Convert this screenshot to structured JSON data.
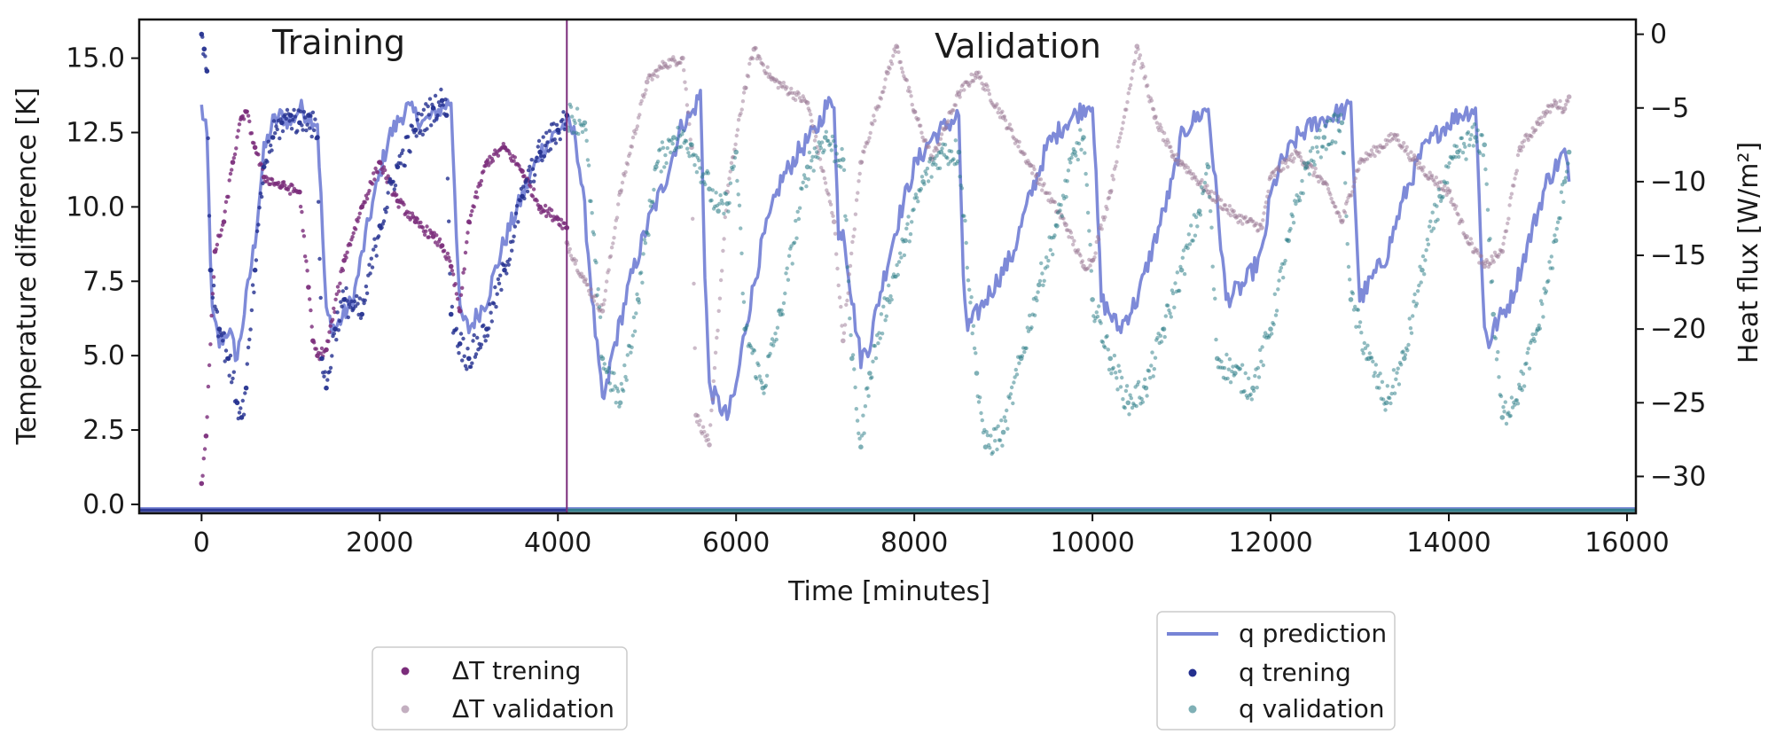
{
  "chart_data": {
    "type": "scatter",
    "xlabel": "Time [minutes]",
    "ylabel_left": "Temperature difference [K]",
    "ylabel_right": "Heat flux [W/m²]",
    "xlim": [
      -700,
      16100
    ],
    "ylim_left": [
      -0.3,
      16.3
    ],
    "ylim_right": [
      -32.5,
      1.0
    ],
    "x_ticks": [
      0,
      2000,
      4000,
      6000,
      8000,
      10000,
      12000,
      14000,
      16000
    ],
    "y_left_ticks": [
      0.0,
      2.5,
      5.0,
      7.5,
      10.0,
      12.5,
      15.0
    ],
    "y_right_ticks": [
      0,
      -5,
      -10,
      -15,
      -20,
      -25,
      -30
    ],
    "x_tick_labels": [
      "0",
      "2000",
      "4000",
      "6000",
      "8000",
      "10000",
      "12000",
      "14000",
      "16000"
    ],
    "y_left_tick_labels": [
      "0.0",
      "2.5",
      "5.0",
      "7.5",
      "10.0",
      "12.5",
      "15.0"
    ],
    "y_right_tick_labels": [
      "0",
      "−5",
      "−10",
      "−15",
      "−20",
      "−25",
      "−30"
    ],
    "split_x": 4100,
    "regions": {
      "training": "Training",
      "validation": "Validation"
    },
    "series": [
      {
        "name": "ΔT trening",
        "kind": "scatter",
        "axis": "left",
        "color": "#7b2d7b",
        "x": [
          0,
          50,
          150,
          250,
          350,
          450,
          500,
          600,
          700,
          900,
          1100,
          1200,
          1250,
          1300,
          1400,
          1600,
          1800,
          2000,
          2200,
          2400,
          2600,
          2700,
          2800,
          2900,
          3000,
          3200,
          3400,
          3600,
          3800,
          4000,
          4100
        ],
        "y": [
          0.7,
          2.3,
          8.5,
          9.5,
          11.5,
          13.0,
          13.2,
          12.0,
          11.0,
          10.7,
          10.5,
          7.3,
          5.5,
          5.0,
          5.2,
          8.2,
          10.0,
          11.5,
          10.2,
          9.5,
          9.0,
          8.7,
          8.0,
          6.5,
          9.5,
          11.5,
          12.0,
          11.2,
          10.0,
          9.6,
          9.3
        ]
      },
      {
        "name": "ΔT validation",
        "kind": "scatter",
        "axis": "left",
        "color": "#9b7a96",
        "x": [
          4100,
          4300,
          4500,
          4700,
          5000,
          5200,
          5400,
          5500,
          5550,
          5700,
          5900,
          6100,
          6200,
          6400,
          6800,
          7100,
          7200,
          7400,
          7700,
          7800,
          8000,
          8200,
          8500,
          8700,
          9000,
          9300,
          9700,
          9900,
          10000,
          10200,
          10500,
          10700,
          10900,
          11000,
          11300,
          11600,
          11900,
          12000,
          12300,
          12600,
          12800,
          13000,
          13400,
          13600,
          13800,
          14000,
          14200,
          14400,
          14600,
          14800,
          15000,
          15100,
          15200,
          15300,
          15350
        ],
        "y": [
          8.8,
          7.5,
          6.5,
          10.5,
          14.2,
          14.8,
          15.0,
          12.0,
          3.0,
          2.0,
          10.5,
          14.0,
          15.3,
          14.3,
          13.5,
          9.5,
          5.5,
          11.5,
          14.5,
          15.4,
          13.2,
          11.6,
          13.8,
          14.5,
          13.0,
          11.4,
          9.4,
          8.0,
          8.2,
          10.5,
          15.4,
          13.0,
          11.7,
          11.5,
          10.5,
          9.7,
          9.3,
          11.0,
          11.8,
          10.8,
          9.5,
          11.5,
          12.4,
          11.6,
          11.0,
          10.5,
          9.0,
          8.0,
          8.5,
          12.0,
          12.8,
          13.2,
          13.5,
          13.3,
          13.7
        ]
      },
      {
        "name": "q prediction",
        "kind": "line",
        "axis": "right",
        "color": "#7784d6",
        "x": [
          0,
          30,
          60,
          120,
          200,
          300,
          400,
          500,
          600,
          700,
          800,
          900,
          1000,
          1100,
          1200,
          1300,
          1400,
          1500,
          1700,
          1900,
          2100,
          2300,
          2500,
          2700,
          2800,
          2900,
          3000,
          3200,
          3400,
          3600,
          3800,
          4000,
          4100,
          4200,
          4300,
          4400,
          4500,
          4550,
          4600,
          4800,
          5000,
          5200,
          5400,
          5500,
          5600,
          5650,
          5700,
          5800,
          5900,
          6000,
          6100,
          6300,
          6500,
          6700,
          6900,
          7000,
          7100,
          7150,
          7200,
          7300,
          7400,
          7500,
          7600,
          7800,
          8000,
          8200,
          8400,
          8500,
          8550,
          8600,
          8700,
          8900,
          9100,
          9300,
          9500,
          9700,
          9900,
          10000,
          10100,
          10300,
          10500,
          10700,
          10900,
          11000,
          11100,
          11300,
          11500,
          11700,
          11900,
          12000,
          12100,
          12300,
          12500,
          12700,
          12900,
          13000,
          13100,
          13300,
          13500,
          13700,
          13900,
          14000,
          14100,
          14300,
          14400,
          14450,
          14500,
          14700,
          14900,
          15100,
          15300,
          15350
        ],
        "y": [
          -5,
          -6,
          -7,
          -19,
          -21,
          -20,
          -22,
          -18,
          -14,
          -8,
          -6,
          -5.5,
          -6,
          -5,
          -5.5,
          -6,
          -19,
          -20,
          -18,
          -12,
          -7,
          -5,
          -6,
          -5,
          -4.5,
          -19,
          -20,
          -18,
          -14,
          -11,
          -8,
          -6.5,
          -6,
          -7,
          -12,
          -19,
          -25,
          -24,
          -22,
          -17,
          -13,
          -10,
          -6,
          -5.5,
          -4,
          -16,
          -24,
          -25,
          -26,
          -24,
          -20,
          -14,
          -10,
          -8,
          -6.5,
          -5,
          -4.5,
          -14,
          -13,
          -18,
          -22,
          -21,
          -18,
          -13,
          -9,
          -7,
          -6,
          -5.5,
          -17,
          -20,
          -19,
          -17,
          -15,
          -11,
          -7.5,
          -6,
          -5,
          -4.5,
          -18,
          -20,
          -18,
          -14,
          -10,
          -7,
          -6,
          -5,
          -18,
          -17,
          -15,
          -11,
          -9,
          -7,
          -6,
          -5.5,
          -5,
          -18,
          -17,
          -15,
          -11,
          -8,
          -6.5,
          -6,
          -5.5,
          -5,
          -20,
          -21,
          -20,
          -18,
          -14,
          -10,
          -8,
          -10
        ],
        "baseline": -32.2
      },
      {
        "name": "q trening",
        "kind": "scatter",
        "axis": "right",
        "color": "#24308f",
        "x": [
          0,
          30,
          60,
          100,
          200,
          300,
          400,
          450,
          500,
          600,
          700,
          800,
          900,
          1000,
          1100,
          1200,
          1300,
          1350,
          1400,
          1500,
          1600,
          1800,
          2000,
          2200,
          2400,
          2600,
          2700,
          2750,
          2800,
          2900,
          3000,
          3200,
          3400,
          3600,
          3800,
          4000,
          4100
        ],
        "y": [
          0,
          -1,
          -2.5,
          -16,
          -20,
          -22,
          -25,
          -26,
          -24,
          -16,
          -9,
          -7,
          -6,
          -5.5,
          -6,
          -5.5,
          -7,
          -22,
          -24,
          -20,
          -18,
          -19,
          -13,
          -9,
          -6.5,
          -5,
          -4.5,
          -5.5,
          -19,
          -21,
          -22,
          -20,
          -16,
          -11,
          -8,
          -6.5,
          -5.5
        ],
        "baseline": -32.3
      },
      {
        "name": "q validation",
        "kind": "scatter",
        "axis": "right",
        "color": "#2a7b86",
        "x": [
          4100,
          4300,
          4500,
          4700,
          4900,
          5100,
          5300,
          5500,
          5700,
          5800,
          5900,
          6000,
          6100,
          6300,
          6500,
          6800,
          7000,
          7200,
          7300,
          7400,
          7500,
          7700,
          7900,
          8100,
          8300,
          8500,
          8700,
          8800,
          9000,
          9200,
          9400,
          9600,
          9800,
          9900,
          10000,
          10200,
          10400,
          10600,
          10800,
          11000,
          11200,
          11300,
          11400,
          11600,
          11800,
          12000,
          12200,
          12400,
          12600,
          12800,
          12900,
          13100,
          13300,
          13500,
          13700,
          13900,
          14100,
          14300,
          14400,
          14500,
          14600,
          14800,
          15000,
          15200,
          15300,
          15350
        ],
        "y": [
          -5.5,
          -6,
          -22,
          -25,
          -18,
          -9,
          -7,
          -7.5,
          -10.5,
          -12,
          -11.5,
          -8,
          -20,
          -24,
          -19,
          -9,
          -7,
          -8.5,
          -22,
          -28,
          -23,
          -18,
          -14,
          -10,
          -8,
          -8,
          -23,
          -28,
          -27,
          -22,
          -17,
          -13,
          -8,
          -7,
          -18,
          -22,
          -25,
          -24,
          -20,
          -16,
          -12,
          -9,
          -22,
          -23,
          -24,
          -20,
          -14,
          -9,
          -7,
          -6,
          -18,
          -22,
          -25,
          -22,
          -16,
          -11,
          -8,
          -7,
          -7.5,
          -19,
          -26,
          -24,
          -20,
          -14,
          -10,
          -8
        ],
        "baseline": -32.3
      }
    ],
    "legend_left": [
      "ΔT trening",
      "ΔT validation"
    ],
    "legend_right": [
      "q prediction",
      "q trening",
      "q validation"
    ]
  }
}
